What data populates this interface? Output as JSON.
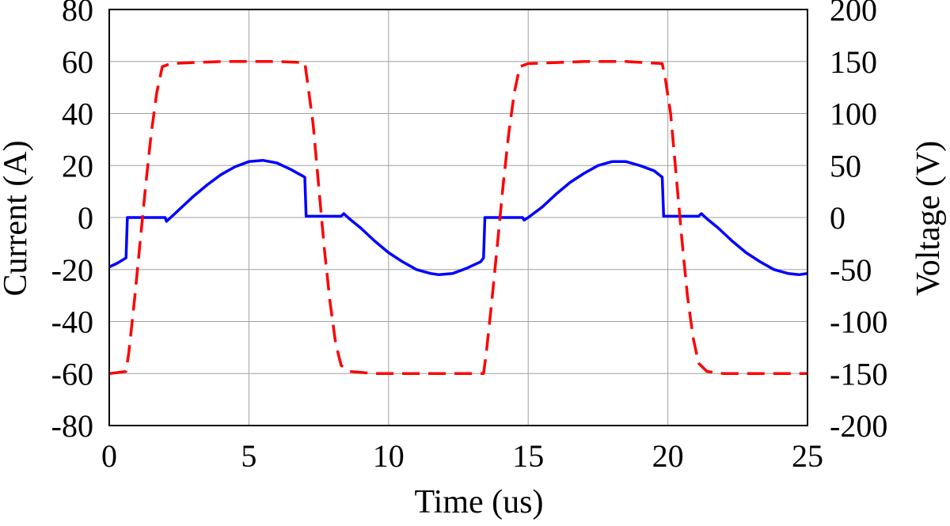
{
  "chart_data": {
    "type": "line",
    "xlabel": "Time (us)",
    "ylabel": "Current (A)",
    "y2label": "Voltage (V)",
    "xlim": [
      0,
      25
    ],
    "ylim": [
      -80,
      80
    ],
    "y2lim": [
      -200,
      200
    ],
    "xticks": [
      0,
      5,
      10,
      15,
      20,
      25
    ],
    "yticks": [
      -80,
      -60,
      -40,
      -20,
      0,
      20,
      40,
      60,
      80
    ],
    "y2ticks": [
      -200,
      -150,
      -100,
      -50,
      0,
      50,
      100,
      150,
      200
    ],
    "grid": true,
    "legend": "none",
    "series": [
      {
        "axis": "left",
        "color": "#0000ff",
        "style": "solid",
        "points": [
          [
            0.0,
            -19.0
          ],
          [
            0.3,
            -17.5
          ],
          [
            0.6,
            -15.5
          ],
          [
            0.65,
            0
          ],
          [
            1.5,
            0
          ],
          [
            2.0,
            0
          ],
          [
            2.05,
            -1.5
          ],
          [
            2.2,
            0
          ],
          [
            2.5,
            3
          ],
          [
            3.0,
            8
          ],
          [
            3.5,
            12.5
          ],
          [
            4.0,
            16.5
          ],
          [
            4.5,
            19.5
          ],
          [
            5.0,
            21.5
          ],
          [
            5.5,
            22
          ],
          [
            6.0,
            21
          ],
          [
            6.5,
            18.5
          ],
          [
            7.0,
            15.5
          ],
          [
            7.05,
            0.5
          ],
          [
            7.5,
            0.5
          ],
          [
            8.0,
            0.5
          ],
          [
            8.3,
            0.5
          ],
          [
            8.4,
            1.5
          ],
          [
            8.6,
            -0.5
          ],
          [
            9.0,
            -4
          ],
          [
            9.5,
            -9
          ],
          [
            10.0,
            -13.5
          ],
          [
            10.5,
            -17
          ],
          [
            11.0,
            -20
          ],
          [
            11.5,
            -21.5
          ],
          [
            11.8,
            -22
          ],
          [
            12.3,
            -21.5
          ],
          [
            12.8,
            -19.5
          ],
          [
            13.3,
            -17
          ],
          [
            13.4,
            -15.5
          ],
          [
            13.45,
            0
          ],
          [
            14.3,
            0
          ],
          [
            14.8,
            0
          ],
          [
            14.85,
            -1
          ],
          [
            15.0,
            0
          ],
          [
            15.5,
            4
          ],
          [
            16.0,
            9
          ],
          [
            16.5,
            13.5
          ],
          [
            17.0,
            17
          ],
          [
            17.5,
            20
          ],
          [
            18.0,
            21.5
          ],
          [
            18.5,
            21.5
          ],
          [
            19.0,
            20
          ],
          [
            19.5,
            18
          ],
          [
            19.8,
            15.5
          ],
          [
            19.85,
            0.5
          ],
          [
            20.5,
            0.5
          ],
          [
            21.1,
            0.5
          ],
          [
            21.2,
            1.5
          ],
          [
            21.4,
            -0.5
          ],
          [
            21.8,
            -4
          ],
          [
            22.3,
            -9
          ],
          [
            22.8,
            -13.5
          ],
          [
            23.3,
            -17
          ],
          [
            23.8,
            -20
          ],
          [
            24.3,
            -21.5
          ],
          [
            24.7,
            -22
          ],
          [
            25.0,
            -21.5
          ]
        ]
      },
      {
        "axis": "right",
        "color": "#ff0000",
        "style": "dashed",
        "points": [
          [
            0.0,
            -150
          ],
          [
            0.6,
            -148
          ],
          [
            0.7,
            -130
          ],
          [
            0.9,
            -80
          ],
          [
            1.1,
            -25
          ],
          [
            1.3,
            30
          ],
          [
            1.5,
            80
          ],
          [
            1.7,
            120
          ],
          [
            1.9,
            145
          ],
          [
            2.2,
            148
          ],
          [
            3.0,
            149
          ],
          [
            4.0,
            150
          ],
          [
            5.0,
            150
          ],
          [
            6.0,
            150
          ],
          [
            7.0,
            149
          ],
          [
            7.1,
            130
          ],
          [
            7.3,
            90
          ],
          [
            7.5,
            30
          ],
          [
            7.7,
            -30
          ],
          [
            7.9,
            -80
          ],
          [
            8.1,
            -120
          ],
          [
            8.3,
            -142
          ],
          [
            8.6,
            -148
          ],
          [
            9.5,
            -150
          ],
          [
            11.0,
            -150
          ],
          [
            12.5,
            -150
          ],
          [
            13.4,
            -150
          ],
          [
            13.5,
            -130
          ],
          [
            13.7,
            -80
          ],
          [
            13.9,
            -25
          ],
          [
            14.1,
            30
          ],
          [
            14.3,
            80
          ],
          [
            14.5,
            120
          ],
          [
            14.7,
            145
          ],
          [
            15.0,
            148
          ],
          [
            16.0,
            149
          ],
          [
            17.0,
            150
          ],
          [
            18.5,
            150
          ],
          [
            19.8,
            148
          ],
          [
            19.9,
            135
          ],
          [
            20.1,
            100
          ],
          [
            20.3,
            40
          ],
          [
            20.5,
            -20
          ],
          [
            20.7,
            -75
          ],
          [
            20.9,
            -115
          ],
          [
            21.1,
            -140
          ],
          [
            21.4,
            -148
          ],
          [
            22.0,
            -150
          ],
          [
            23.5,
            -150
          ],
          [
            25.0,
            -150
          ]
        ]
      }
    ]
  }
}
